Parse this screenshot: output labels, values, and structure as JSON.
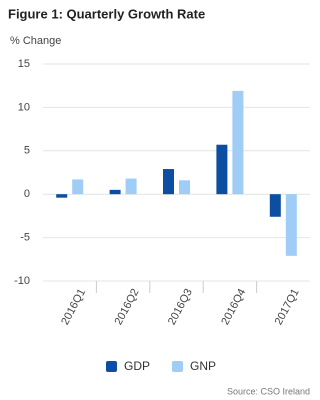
{
  "chart_data": {
    "type": "bar",
    "title": "Figure 1: Quarterly Growth Rate",
    "y_label": "% Change",
    "source": "Source: CSO Ireland",
    "categories": [
      "2016Q1",
      "2016Q2",
      "2016Q3",
      "2016Q4",
      "2017Q1"
    ],
    "series": [
      {
        "name": "GDP",
        "color": "#0b4ea2",
        "values": [
          -0.4,
          0.5,
          2.9,
          5.7,
          -2.6
        ]
      },
      {
        "name": "GNP",
        "color": "#9fcdf6",
        "values": [
          1.7,
          1.8,
          1.6,
          11.9,
          -7.1
        ]
      }
    ],
    "ylim": [
      -10,
      15
    ],
    "yticks": [
      -10,
      -5,
      0,
      5,
      10,
      15
    ],
    "grid": true
  }
}
